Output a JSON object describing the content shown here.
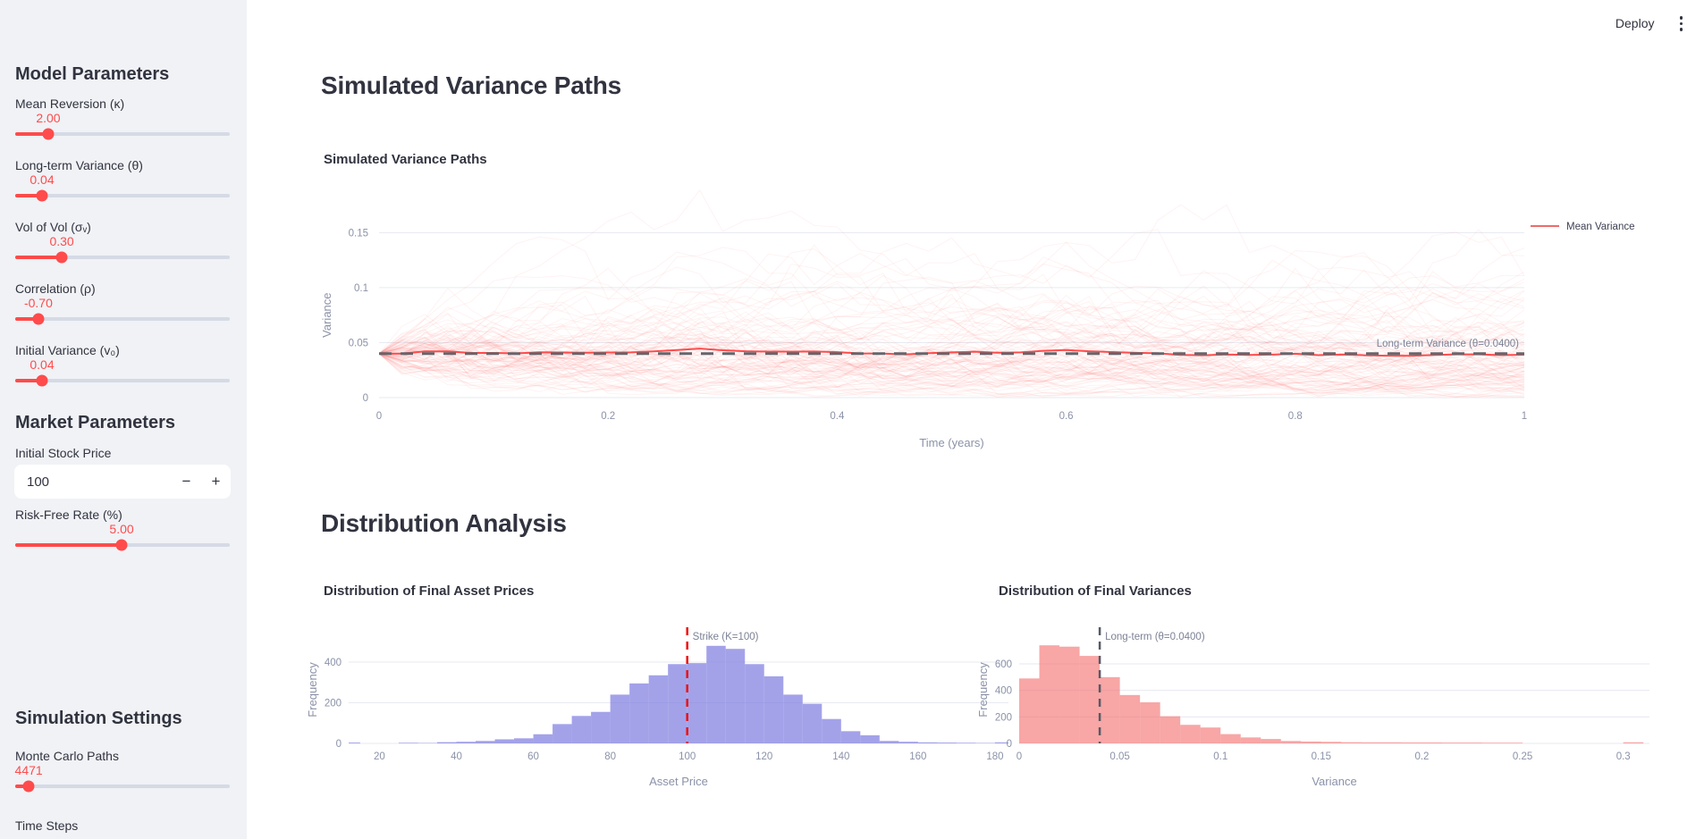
{
  "header": {
    "deploy_label": "Deploy"
  },
  "sidebar": {
    "model_title": "Model Parameters",
    "sliders": [
      {
        "label": "Mean Reversion (κ)",
        "value": "2.00",
        "percent": 15.4
      },
      {
        "label": "Long-term Variance (θ)",
        "value": "0.04",
        "percent": 12.5
      },
      {
        "label": "Vol of Vol (σᵥ)",
        "value": "0.30",
        "percent": 21.7
      },
      {
        "label": "Correlation (ρ)",
        "value": "-0.70",
        "percent": 10.8
      },
      {
        "label": "Initial Variance (v₀)",
        "value": "0.04",
        "percent": 12.5
      }
    ],
    "market_title": "Market Parameters",
    "stock_price": {
      "label": "Initial Stock Price",
      "value": "100",
      "minus": "−",
      "plus": "+"
    },
    "risk_free": {
      "label": "Risk-Free Rate (%)",
      "value": "5.00",
      "percent": 49.6
    },
    "sim_title": "Simulation Settings",
    "monte_carlo": {
      "label": "Monte Carlo Paths",
      "value": "4471",
      "percent": 6.3
    },
    "time_steps_label": "Time Steps"
  },
  "main": {
    "section1_title": "Simulated Variance Paths",
    "section2_title": "Distribution Analysis"
  },
  "chart_data": [
    {
      "type": "line",
      "title": "Simulated Variance Paths",
      "xlabel": "Time (years)",
      "ylabel": "Variance",
      "x_ticks": [
        0,
        0.2,
        0.4,
        0.6,
        0.8,
        1
      ],
      "y_ticks": [
        0,
        0.05,
        0.1,
        0.15
      ],
      "xlim": [
        0,
        1
      ],
      "ylim": [
        0,
        0.16
      ],
      "grid": true,
      "paths": {
        "count": 110,
        "steps": 50,
        "initial_variance": 0.04,
        "kappa": 2.0,
        "theta": 0.04,
        "vol_of_vol": 0.3,
        "color": "rgba(255,85,85,0.07)"
      },
      "mean_series": {
        "name": "Mean Variance",
        "level": 0.04,
        "color": "#ff4b4b"
      },
      "theta_line": {
        "level": 0.04,
        "label": "Long-term Variance (θ=0.0400)",
        "color": "#63666d",
        "dash": true
      },
      "legend": {
        "position": "right",
        "entries": [
          {
            "label": "Mean Variance",
            "color": "#f06a6a"
          }
        ]
      }
    },
    {
      "type": "bar",
      "title": "Distribution of Final Asset Prices",
      "xlabel": "Asset Price",
      "ylabel": "Frequency",
      "bin_start": 10,
      "bin_width": 5,
      "values": [
        4,
        0,
        0,
        3,
        2,
        6,
        8,
        12,
        20,
        25,
        45,
        95,
        135,
        155,
        240,
        295,
        335,
        390,
        395,
        480,
        465,
        390,
        330,
        240,
        195,
        120,
        60,
        40,
        12,
        8,
        5,
        4,
        3,
        2,
        5
      ],
      "x_ticks": [
        20,
        40,
        60,
        80,
        100,
        120,
        140,
        160,
        180
      ],
      "y_ticks": [
        0,
        200,
        400
      ],
      "xlim": [
        12,
        183.5
      ],
      "ylim": [
        0,
        560
      ],
      "grid": true,
      "bar_color": "#807ee0",
      "bar_opacity": 0.72,
      "vline": {
        "x": 100,
        "label": "Strike (K=100)",
        "color": "#ee1111",
        "dash": true
      }
    },
    {
      "type": "bar",
      "title": "Distribution of Final Variances",
      "xlabel": "Variance",
      "ylabel": "Frequency",
      "bin_start": 0,
      "bin_width": 0.01,
      "values": [
        490,
        740,
        730,
        660,
        500,
        365,
        310,
        205,
        140,
        120,
        70,
        45,
        33,
        18,
        14,
        12,
        9,
        8,
        8,
        7,
        7,
        6,
        6,
        5,
        5,
        0,
        0,
        0,
        0,
        0,
        8
      ],
      "x_ticks": [
        0,
        0.05,
        0.1,
        0.15,
        0.2,
        0.25,
        0.3
      ],
      "y_ticks": [
        0,
        200,
        400,
        600
      ],
      "xlim": [
        0,
        0.313
      ],
      "ylim": [
        0,
        860
      ],
      "grid": true,
      "bar_color": "#f47070",
      "bar_opacity": 0.62,
      "vline": {
        "x": 0.04,
        "label": "Long-term (θ=0.0400)",
        "color": "#555b66",
        "dash": true
      }
    }
  ]
}
